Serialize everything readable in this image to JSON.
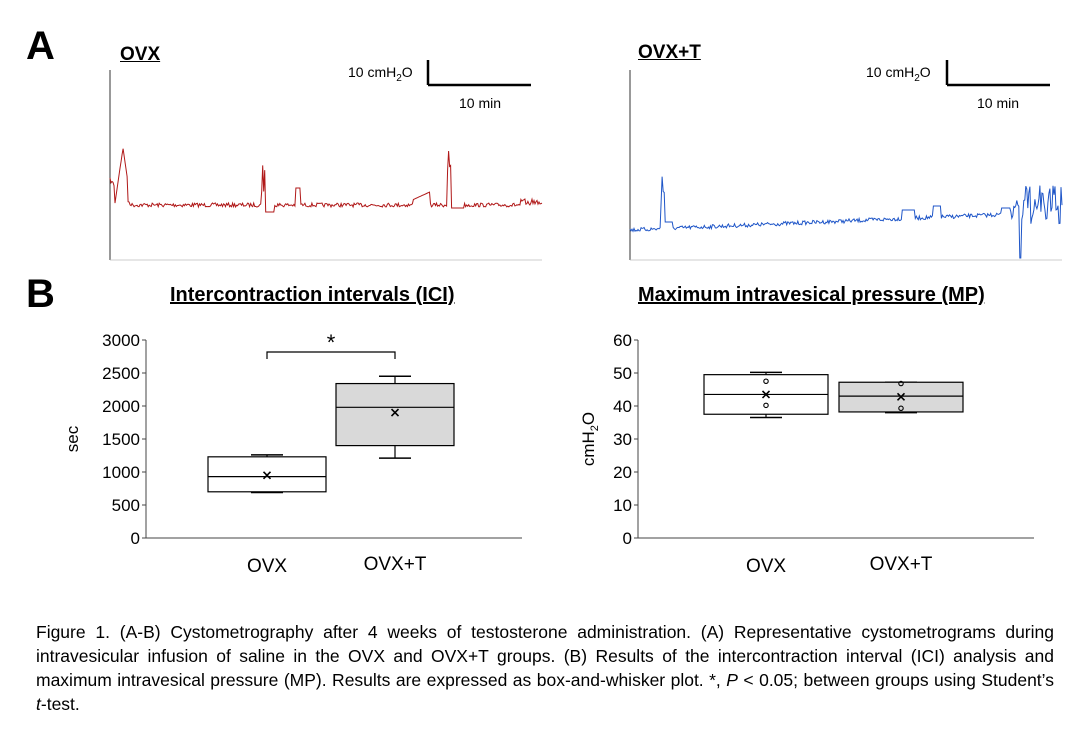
{
  "panel_a": {
    "letter": "A",
    "traces": [
      {
        "label": "OVX",
        "color": "#b01818",
        "scale_pressure": "10 cmH",
        "scale_sub": "2",
        "scale_tail": "O",
        "scale_time": "10 min"
      },
      {
        "label": "OVX+T",
        "color": "#1f56c8",
        "scale_pressure": "10 cmH",
        "scale_sub": "2",
        "scale_tail": "O",
        "scale_time": "10 min"
      }
    ]
  },
  "panel_b": {
    "letter": "B"
  },
  "chart_data": [
    {
      "type": "box",
      "title": "Intercontraction intervals (ICI)",
      "ylabel": "sec",
      "ylim": [
        0,
        3000
      ],
      "yticks": [
        0,
        500,
        1000,
        1500,
        2000,
        2500,
        3000
      ],
      "categories": [
        "OVX",
        "OVX+T"
      ],
      "boxes": [
        {
          "name": "OVX",
          "min": 690,
          "q1": 700,
          "median": 930,
          "q3": 1230,
          "max": 1260,
          "mean": 950,
          "outliers": [],
          "fill": "#ffffff"
        },
        {
          "name": "OVX+T",
          "min": 1210,
          "q1": 1400,
          "median": 1980,
          "q3": 2340,
          "max": 2450,
          "mean": 1900,
          "outliers": [],
          "fill": "#d9d9d9"
        }
      ],
      "annotation": "*",
      "grid": false
    },
    {
      "type": "box",
      "title": "Maximum intravesical pressure (MP)",
      "ylabel": "cmH",
      "ylabel_sub": "2",
      "ylabel_tail": "O",
      "ylim": [
        0,
        60
      ],
      "yticks": [
        0,
        10,
        20,
        30,
        40,
        50,
        60
      ],
      "categories": [
        "OVX",
        "OVX+T"
      ],
      "boxes": [
        {
          "name": "OVX",
          "min": 36.5,
          "q1": 37.5,
          "median": 43.5,
          "q3": 49.5,
          "max": 50.2,
          "mean": 43.5,
          "outliers": [
            47.5,
            40.2
          ],
          "fill": "#ffffff"
        },
        {
          "name": "OVX+T",
          "min": 38,
          "q1": 38.2,
          "median": 43,
          "q3": 47.2,
          "max": 47.2,
          "mean": 42.8,
          "outliers": [
            46.8,
            39.3
          ],
          "fill": "#d9d9d9"
        }
      ],
      "grid": false
    }
  ],
  "caption": {
    "p1": "Figure 1. (A-B) Cystometrography after 4 weeks of testosterone administration. (A) Representative cystometrograms during intravesicular infusion of saline in the OVX and OVX+T groups. (B) Results of the intercontraction interval (ICI) analysis and maximum intravesical pressure (MP). Results are expressed as box-and-whisker plot. *, ",
    "p_italic": "P",
    "p2": " < 0.05; between groups using Student’s ",
    "t_italic": "t",
    "p3": "-test."
  }
}
